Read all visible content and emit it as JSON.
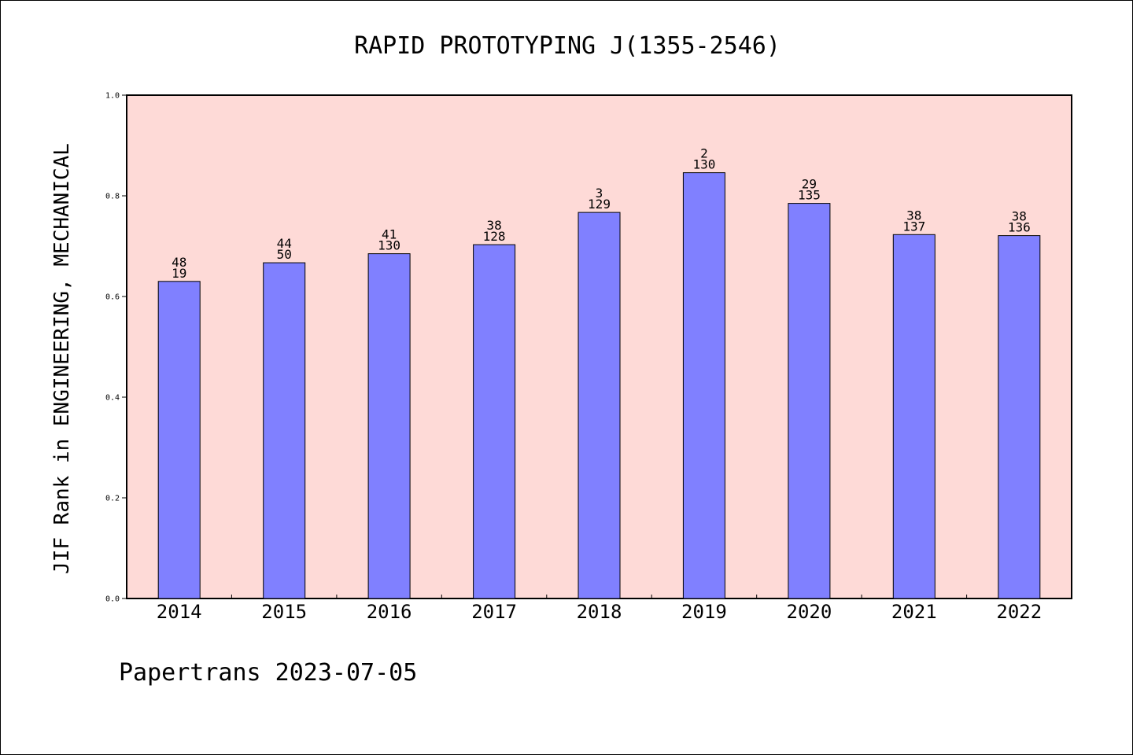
{
  "chart_data": {
    "type": "bar",
    "title": "RAPID PROTOTYPING J(1355-2546)",
    "xlabel": "",
    "ylabel": "JIF Rank in ENGINEERING, MECHANICAL",
    "ylim": [
      0,
      1.0
    ],
    "yticks": [
      "0.0",
      "0.2",
      "0.4",
      "0.6",
      "0.8",
      "1.0"
    ],
    "categories": [
      "2014",
      "2015",
      "2016",
      "2017",
      "2018",
      "2019",
      "2020",
      "2021",
      "2022"
    ],
    "values": [
      0.63,
      0.667,
      0.685,
      0.703,
      0.767,
      0.846,
      0.785,
      0.723,
      0.721
    ],
    "annotations": [
      {
        "top": "48",
        "bottom": "19"
      },
      {
        "top": "44",
        "bottom": "50"
      },
      {
        "top": "41",
        "bottom": "130"
      },
      {
        "top": "38",
        "bottom": "128"
      },
      {
        "top": "3",
        "bottom": "129"
      },
      {
        "top": "2",
        "bottom": "130"
      },
      {
        "top": "29",
        "bottom": "135"
      },
      {
        "top": "38",
        "bottom": "137"
      },
      {
        "top": "38",
        "bottom": "136"
      }
    ],
    "grid": false,
    "colors": {
      "plot_background": "#fedad7",
      "bar_fill": "#8080ff",
      "bar_stroke": "#000000"
    }
  },
  "footer": "Papertrans 2023-07-05"
}
